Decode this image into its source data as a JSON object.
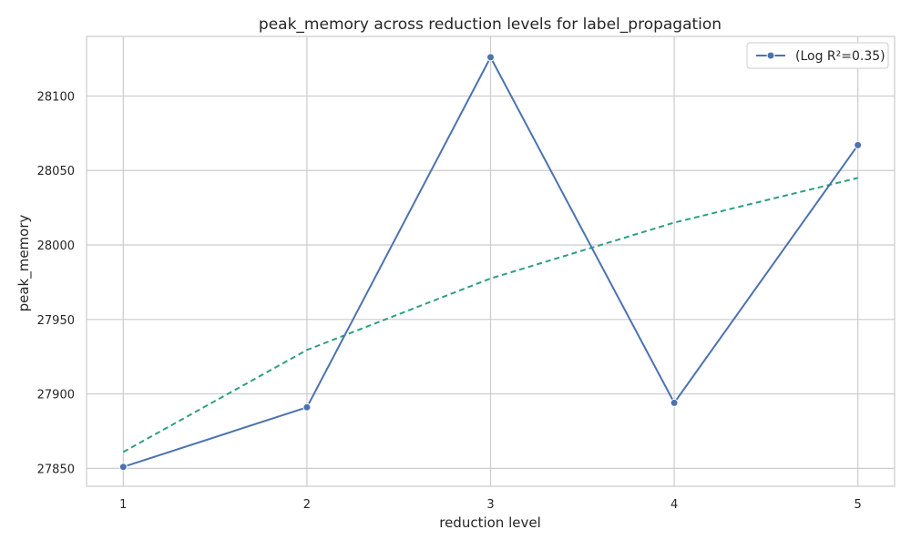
{
  "chart_data": {
    "type": "line",
    "title": "peak_memory across reduction levels for label_propagation",
    "xlabel": "reduction level",
    "ylabel": "peak_memory",
    "x": [
      1,
      2,
      3,
      4,
      5
    ],
    "xlim": [
      0.8,
      5.2
    ],
    "ylim": [
      27838,
      28140
    ],
    "yticks": [
      27850,
      27900,
      27950,
      28000,
      28050,
      28100
    ],
    "grid": true,
    "legend_position": "top-right",
    "series": [
      {
        "name": "(Log R²=0.35)",
        "values": [
          27851,
          27891,
          28126,
          27894,
          28067
        ],
        "color": "#4c72b0",
        "style": "solid",
        "marker": "circle"
      },
      {
        "values": [
          27861,
          27929.5,
          27977.5,
          28015,
          28045
        ],
        "color": "#2ca07e",
        "style": "dashed",
        "marker": "none"
      }
    ]
  }
}
